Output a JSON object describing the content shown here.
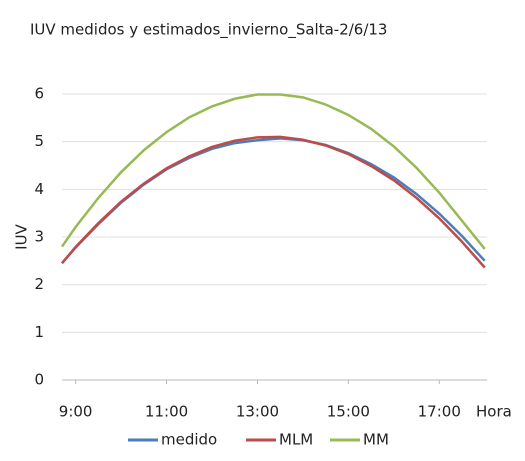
{
  "chart_data": {
    "type": "line",
    "title": "IUV medidos y estimados_invierno_Salta-2/6/13",
    "y_label": "IUV",
    "x_label": "Hora",
    "x": [
      8.7,
      9,
      9.5,
      10,
      10.5,
      11,
      11.5,
      12,
      12.5,
      13,
      13.5,
      14,
      14.5,
      15,
      15.5,
      16,
      16.5,
      17,
      17.5,
      18
    ],
    "series": [
      {
        "name": "medido",
        "color": "#4a7ebb",
        "values": [
          2.45,
          2.78,
          3.27,
          3.72,
          4.1,
          4.42,
          4.66,
          4.85,
          4.97,
          5.03,
          5.07,
          5.03,
          4.93,
          4.76,
          4.53,
          4.25,
          3.9,
          3.49,
          3.02,
          2.5
        ]
      },
      {
        "name": "MLM",
        "color": "#be4b48",
        "values": [
          2.45,
          2.79,
          3.29,
          3.74,
          4.12,
          4.44,
          4.69,
          4.89,
          5.02,
          5.09,
          5.1,
          5.04,
          4.92,
          4.74,
          4.49,
          4.19,
          3.82,
          3.39,
          2.9,
          2.36
        ]
      },
      {
        "name": "MM",
        "color": "#98b954",
        "values": [
          2.8,
          3.21,
          3.82,
          4.36,
          4.82,
          5.2,
          5.51,
          5.74,
          5.9,
          5.99,
          5.99,
          5.93,
          5.78,
          5.56,
          5.27,
          4.9,
          4.45,
          3.93,
          3.34,
          2.75
        ]
      }
    ],
    "xlim": [
      8.7,
      18.05
    ],
    "xticks": [
      {
        "value": 9,
        "label": "9:00"
      },
      {
        "value": 11,
        "label": "11:00"
      },
      {
        "value": 13,
        "label": "13:00"
      },
      {
        "value": 15,
        "label": "15:00"
      },
      {
        "value": 17,
        "label": "17:00"
      }
    ],
    "ylim": [
      0,
      6
    ],
    "yticks": [
      0,
      1,
      2,
      3,
      4,
      5,
      6
    ],
    "grid": true
  }
}
